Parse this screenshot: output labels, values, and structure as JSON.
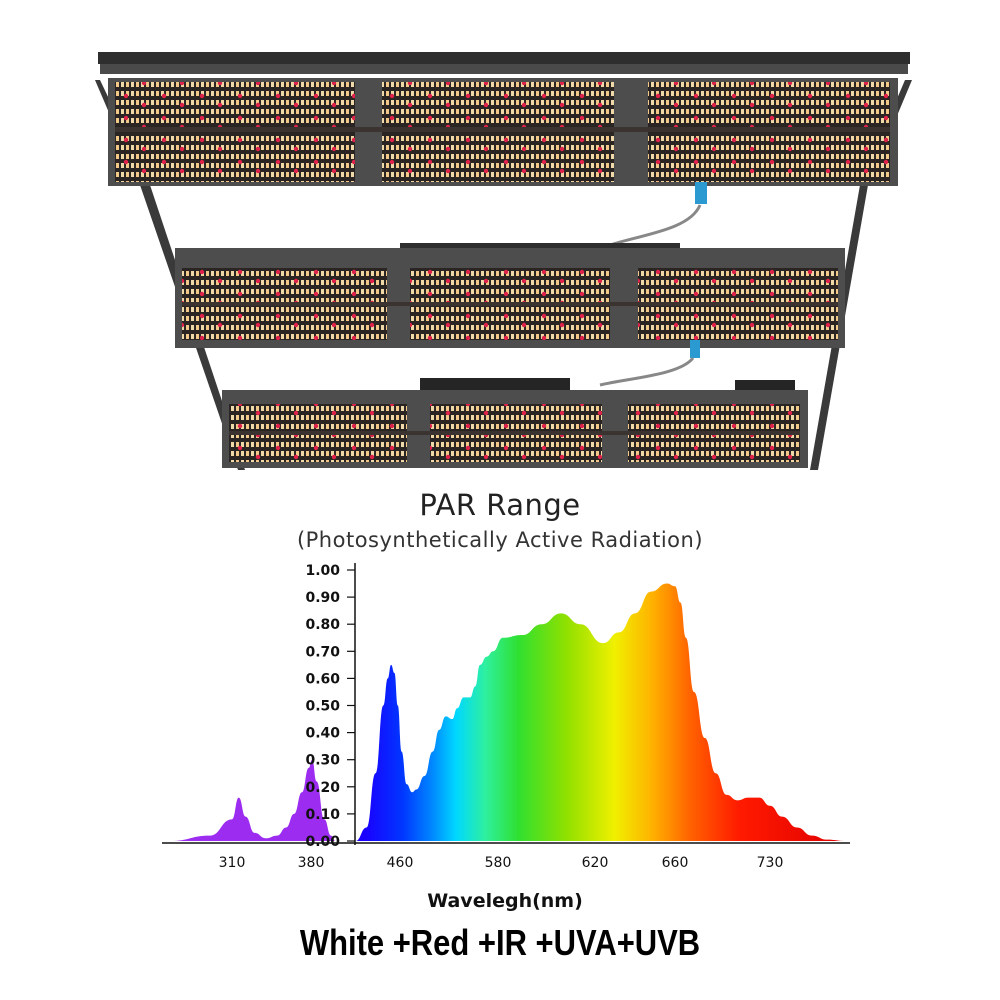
{
  "photo": {
    "subject": "led-grow-light-bars"
  },
  "chart_data": {
    "type": "area",
    "title": "PAR Range",
    "subtitle": "(Photosynthetically Active Radiation)",
    "xlabel": "Wavelegh(nm)",
    "ylabel": "",
    "ylim": [
      0,
      1.0
    ],
    "y_ticks": [
      "1.00",
      "0.90",
      "0.80",
      "0.70",
      "0.60",
      "0.50",
      "0.40",
      "0.30",
      "0.20",
      "0.10",
      "0.00"
    ],
    "x_ticks": [
      "310",
      "380",
      "460",
      "580",
      "620",
      "660",
      "730"
    ],
    "grid": false,
    "legend": "none",
    "series": [
      {
        "color": "#9b2cf0",
        "x": [
          282,
          300,
          310,
          316,
          322,
          330,
          340,
          350,
          358,
          365,
          372,
          378,
          381,
          385,
          392,
          398,
          402
        ],
        "y": [
          0.0,
          0.02,
          0.08,
          0.16,
          0.09,
          0.03,
          0.01,
          0.02,
          0.05,
          0.1,
          0.18,
          0.27,
          0.3,
          0.22,
          0.08,
          0.02,
          0.0
        ]
      },
      {
        "gradient": "spectrum",
        "x": [
          420,
          430,
          438,
          445,
          449,
          452,
          455,
          458,
          462,
          468,
          475,
          480,
          490,
          500,
          508,
          516,
          524,
          530,
          538,
          546,
          552,
          558,
          566,
          574,
          582,
          590,
          598,
          606,
          614,
          624,
          632,
          640,
          648,
          656,
          660,
          664,
          668,
          674,
          682,
          690,
          698,
          706,
          714,
          722,
          730,
          738,
          748,
          758,
          768,
          780
        ],
        "y": [
          0.0,
          0.05,
          0.25,
          0.5,
          0.6,
          0.65,
          0.62,
          0.5,
          0.33,
          0.21,
          0.18,
          0.19,
          0.24,
          0.33,
          0.41,
          0.46,
          0.45,
          0.49,
          0.53,
          0.53,
          0.57,
          0.65,
          0.68,
          0.7,
          0.75,
          0.76,
          0.8,
          0.84,
          0.8,
          0.73,
          0.77,
          0.84,
          0.92,
          0.95,
          0.94,
          0.88,
          0.75,
          0.55,
          0.38,
          0.25,
          0.17,
          0.15,
          0.16,
          0.16,
          0.13,
          0.09,
          0.05,
          0.02,
          0.005,
          0.0
        ]
      }
    ]
  },
  "caption": {
    "text": "White +Red +IR +UVA+UVB"
  }
}
